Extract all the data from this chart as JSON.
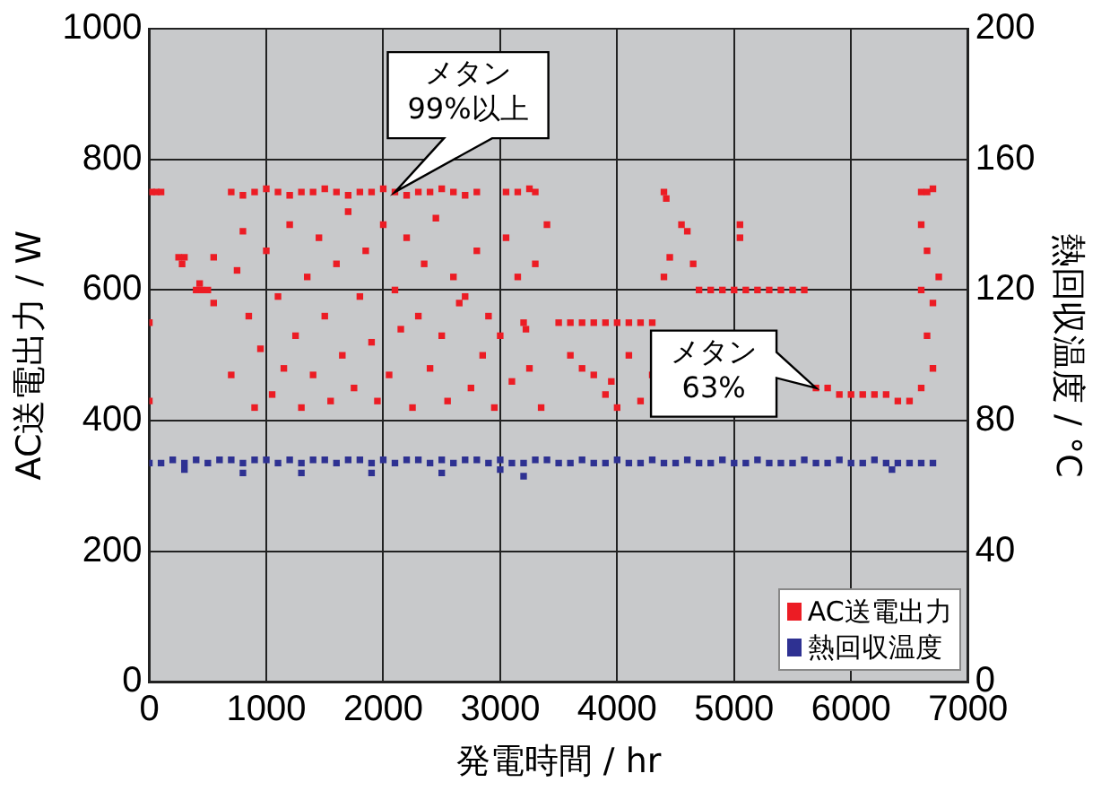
{
  "chart_data": {
    "type": "scatter",
    "xlabel": "発電時間 / hr",
    "ylabel": "AC送電出力 / W",
    "y2label": "熱回収温度 / °C",
    "xlim": [
      0,
      7000
    ],
    "xticks": [
      0,
      1000,
      2000,
      3000,
      4000,
      5000,
      6000,
      7000
    ],
    "ylim": [
      0,
      1000
    ],
    "yticks": [
      0,
      200,
      400,
      600,
      800,
      1000
    ],
    "y2lim": [
      0,
      200
    ],
    "y2ticks": [
      0,
      40,
      80,
      120,
      160,
      200
    ],
    "grid": true,
    "legend": "bottom right",
    "marker": "square",
    "annotations": [
      {
        "text": "メタン\n99%以上",
        "x": 2100,
        "y": 750
      },
      {
        "text": "メタン\n63%",
        "x": 5700,
        "y": 450
      }
    ],
    "series": [
      {
        "name": "AC送電出力",
        "color": "#ec1c24",
        "x": [
          0,
          0,
          20,
          60,
          100,
          250,
          280,
          300,
          400,
          430,
          450,
          500,
          550,
          550,
          700,
          800,
          900,
          1000,
          1100,
          1200,
          1300,
          1400,
          1500,
          1600,
          1700,
          1800,
          1900,
          2000,
          2100,
          2200,
          2300,
          2400,
          2500,
          2600,
          2700,
          2800,
          700,
          750,
          800,
          850,
          900,
          950,
          1000,
          1050,
          1100,
          1150,
          1200,
          1250,
          1300,
          1350,
          1400,
          1450,
          1500,
          1550,
          1600,
          1650,
          1700,
          1750,
          1800,
          1850,
          1900,
          1950,
          2000,
          2050,
          2100,
          2150,
          2200,
          2250,
          2300,
          2350,
          2400,
          2450,
          2500,
          2550,
          2600,
          2650,
          2700,
          2750,
          2800,
          2850,
          2900,
          2950,
          3000,
          3050,
          3100,
          3150,
          3250,
          3300,
          3350,
          3400,
          3050,
          3150,
          3250,
          3300,
          3200,
          3220,
          3500,
          3600,
          3700,
          3800,
          3900,
          4000,
          4100,
          4200,
          4300,
          3600,
          3700,
          3800,
          3900,
          3950,
          4000,
          4100,
          4200,
          4300,
          4400,
          4420,
          4450,
          4400,
          4550,
          4600,
          4650,
          4700,
          4800,
          4900,
          5000,
          5100,
          5200,
          5300,
          5400,
          5500,
          5600,
          5050,
          5050,
          5700,
          5800,
          5900,
          6000,
          6100,
          6200,
          6300,
          6400,
          6500,
          6600,
          6650,
          6700,
          6600,
          6650,
          6600,
          6700,
          6650,
          6700,
          6600,
          6750
        ],
        "values": [
          550,
          430,
          750,
          750,
          750,
          650,
          640,
          650,
          600,
          610,
          600,
          600,
          650,
          580,
          750,
          745,
          750,
          755,
          750,
          745,
          750,
          750,
          755,
          750,
          745,
          750,
          750,
          755,
          750,
          745,
          750,
          750,
          755,
          750,
          745,
          750,
          470,
          630,
          690,
          560,
          420,
          510,
          660,
          440,
          590,
          480,
          700,
          530,
          420,
          620,
          470,
          680,
          560,
          430,
          640,
          500,
          720,
          450,
          590,
          660,
          520,
          430,
          700,
          470,
          600,
          540,
          680,
          420,
          560,
          640,
          480,
          710,
          530,
          430,
          620,
          580,
          590,
          450,
          660,
          500,
          560,
          420,
          530,
          680,
          460,
          620,
          480,
          640,
          420,
          700,
          750,
          750,
          755,
          750,
          550,
          540,
          550,
          550,
          550,
          550,
          550,
          550,
          550,
          550,
          550,
          500,
          480,
          470,
          440,
          460,
          420,
          500,
          430,
          470,
          750,
          740,
          650,
          620,
          700,
          690,
          640,
          600,
          600,
          600,
          600,
          600,
          600,
          600,
          600,
          600,
          600,
          700,
          680,
          450,
          450,
          440,
          440,
          440,
          440,
          440,
          430,
          430,
          750,
          750,
          755,
          700,
          660,
          600,
          580,
          530,
          480,
          450,
          620
        ]
      },
      {
        "name": "熱回収温度",
        "color": "#2e3192",
        "axis": "y2",
        "x": [
          0,
          100,
          200,
          300,
          400,
          500,
          600,
          700,
          800,
          900,
          1000,
          1100,
          1200,
          1300,
          1400,
          1500,
          1600,
          1700,
          1800,
          1900,
          2000,
          2100,
          2200,
          2300,
          2400,
          2500,
          2600,
          2700,
          2800,
          2900,
          3000,
          3100,
          3200,
          3300,
          3400,
          3500,
          3600,
          3700,
          3800,
          3900,
          4000,
          4100,
          4200,
          4300,
          4400,
          4500,
          4600,
          4700,
          4800,
          4900,
          5000,
          5100,
          5200,
          5300,
          5400,
          5500,
          5600,
          5700,
          5800,
          5900,
          6000,
          6100,
          6200,
          6300,
          6400,
          6500,
          6600,
          6700,
          300,
          800,
          1300,
          1900,
          2500,
          3000,
          3200,
          6350
        ],
        "values": [
          67,
          67,
          68,
          67,
          68,
          67,
          68,
          68,
          67,
          68,
          68,
          67,
          68,
          67,
          68,
          68,
          67,
          68,
          68,
          67,
          68,
          67,
          68,
          68,
          67,
          68,
          67,
          68,
          68,
          67,
          68,
          67,
          67,
          68,
          68,
          67,
          67,
          68,
          67,
          67,
          68,
          67,
          67,
          68,
          67,
          67,
          68,
          67,
          67,
          68,
          67,
          67,
          68,
          67,
          67,
          67,
          68,
          67,
          67,
          68,
          67,
          67,
          68,
          67,
          67,
          67,
          67,
          67,
          65,
          64,
          64,
          64,
          64,
          65,
          63,
          65
        ]
      }
    ]
  }
}
